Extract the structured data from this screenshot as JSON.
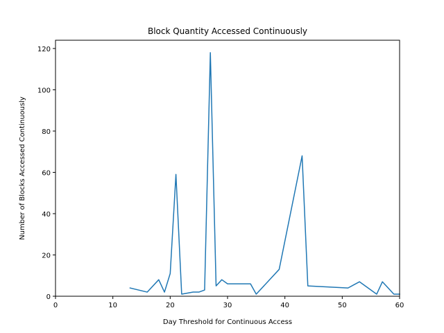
{
  "chart_data": {
    "type": "line",
    "title": "Block Quantity Accessed Continuously",
    "xlabel": "Day Threshold for Continuous Access",
    "ylabel": "Number of Blocks Accessed Continuously",
    "xlim": [
      0,
      60
    ],
    "ylim": [
      0,
      124
    ],
    "xticks": [
      0,
      10,
      20,
      30,
      40,
      50,
      60
    ],
    "yticks": [
      0,
      20,
      40,
      60,
      80,
      100,
      120
    ],
    "grid": false,
    "series": [
      {
        "color": "#1f77b4",
        "x": [
          13,
          16,
          18,
          19,
          20,
          21,
          22,
          24,
          25,
          26,
          27,
          28,
          29,
          30,
          34,
          35,
          39,
          43,
          44,
          51,
          53,
          56,
          57,
          59,
          60
        ],
        "y": [
          4,
          2,
          8,
          2,
          11,
          59,
          1,
          2,
          2,
          3,
          118,
          5,
          8,
          6,
          6,
          1,
          13,
          68,
          5,
          4,
          7,
          1,
          7,
          1,
          1
        ]
      }
    ]
  }
}
